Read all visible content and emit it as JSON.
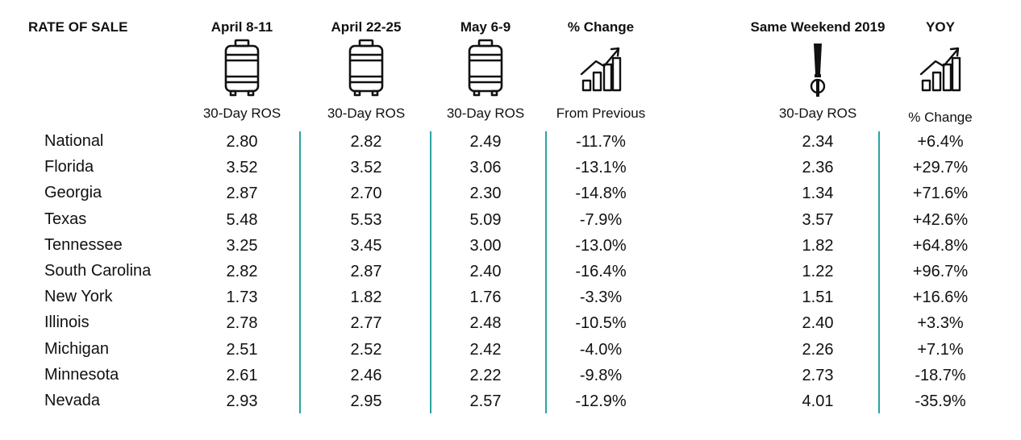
{
  "chart_data": {
    "type": "table",
    "title": "RATE OF SALE",
    "columns": [
      {
        "key": "apr8",
        "header": "April 8-11",
        "icon": "keg-icon",
        "sub": "30-Day ROS"
      },
      {
        "key": "apr22",
        "header": "April 22-25",
        "icon": "keg-icon",
        "sub": "30-Day ROS"
      },
      {
        "key": "may6",
        "header": "May 6-9",
        "icon": "keg-icon",
        "sub": "30-Day ROS"
      },
      {
        "key": "pct",
        "header": "% Change",
        "icon": "growth-chart-icon",
        "sub": "From Previous"
      },
      {
        "key": "y2019",
        "header": "Same Weekend 2019",
        "icon": "beer-tap-icon",
        "sub": "30-Day ROS"
      },
      {
        "key": "yoy",
        "header": "YOY",
        "icon": "growth-chart-icon",
        "sub": "% Change"
      }
    ],
    "rows": [
      {
        "state": "National",
        "values": [
          "2.80",
          "2.82",
          "2.49",
          "-11.7%",
          "2.34",
          "+6.4%"
        ]
      },
      {
        "state": "Florida",
        "values": [
          "3.52",
          "3.52",
          "3.06",
          "-13.1%",
          "2.36",
          "+29.7%"
        ]
      },
      {
        "state": "Georgia",
        "values": [
          "2.87",
          "2.70",
          "2.30",
          "-14.8%",
          "1.34",
          "+71.6%"
        ]
      },
      {
        "state": "Texas",
        "values": [
          "5.48",
          "5.53",
          "5.09",
          "-7.9%",
          "3.57",
          "+42.6%"
        ]
      },
      {
        "state": "Tennessee",
        "values": [
          "3.25",
          "3.45",
          "3.00",
          "-13.0%",
          "1.82",
          "+64.8%"
        ]
      },
      {
        "state": "South Carolina",
        "values": [
          "2.82",
          "2.87",
          "2.40",
          "-16.4%",
          "1.22",
          "+96.7%"
        ]
      },
      {
        "state": "New York",
        "values": [
          "1.73",
          "1.82",
          "1.76",
          "-3.3%",
          "1.51",
          "+16.6%"
        ]
      },
      {
        "state": "Illinois",
        "values": [
          "2.78",
          "2.77",
          "2.48",
          "-10.5%",
          "2.40",
          "+3.3%"
        ]
      },
      {
        "state": "Michigan",
        "values": [
          "2.51",
          "2.52",
          "2.42",
          "-4.0%",
          "2.26",
          "+7.1%"
        ]
      },
      {
        "state": "Minnesota",
        "values": [
          "2.61",
          "2.46",
          "2.22",
          "-9.8%",
          "2.73",
          "-18.7%"
        ]
      },
      {
        "state": "Nevada",
        "values": [
          "2.93",
          "2.95",
          "2.57",
          "-12.9%",
          "4.01",
          "-35.9%"
        ]
      }
    ],
    "colors": {
      "divider": "#2aa3a3",
      "text": "#111111"
    }
  }
}
